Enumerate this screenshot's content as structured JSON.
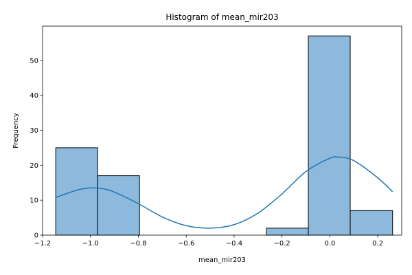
{
  "chart_data": {
    "type": "bar",
    "title": "Histogram of mean_mir203",
    "xlabel": "mean_mir203",
    "ylabel": "Frequency",
    "xlim": [
      -1.2,
      0.3
    ],
    "ylim": [
      0,
      59.8
    ],
    "xticks": [
      -1.2,
      -1.0,
      -0.8,
      -0.6,
      -0.4,
      -0.2,
      0.0,
      0.2
    ],
    "xtick_labels": [
      "−1.2",
      "−1.0",
      "−0.8",
      "−0.6",
      "−0.4",
      "−0.2",
      "0.0",
      "0.2"
    ],
    "yticks": [
      0,
      10,
      20,
      30,
      40,
      50
    ],
    "ytick_labels": [
      "0",
      "10",
      "20",
      "30",
      "40",
      "50"
    ],
    "bins": [
      {
        "x0": -1.145,
        "x1": -0.97,
        "count": 25
      },
      {
        "x0": -0.97,
        "x1": -0.795,
        "count": 17
      },
      {
        "x0": -0.795,
        "x1": -0.62,
        "count": 0
      },
      {
        "x0": -0.62,
        "x1": -0.44,
        "count": 0
      },
      {
        "x0": -0.44,
        "x1": -0.265,
        "count": 0
      },
      {
        "x0": -0.265,
        "x1": -0.09,
        "count": 2
      },
      {
        "x0": -0.09,
        "x1": 0.085,
        "count": 57
      },
      {
        "x0": 0.085,
        "x1": 0.262,
        "count": 7
      }
    ],
    "kde": {
      "x": [
        -1.145,
        -1.05,
        -1.0,
        -0.95,
        -0.9,
        -0.8,
        -0.7,
        -0.6,
        -0.5,
        -0.4,
        -0.3,
        -0.2,
        -0.1,
        0.0,
        0.04,
        0.1,
        0.2,
        0.262
      ],
      "y": [
        10.8,
        13.0,
        13.5,
        13.3,
        12.3,
        9.0,
        5.2,
        2.7,
        2.0,
        3.0,
        6.3,
        11.8,
        18.2,
        22.0,
        22.3,
        21.3,
        16.4,
        12.4
      ]
    },
    "colors": {
      "bar_fill": "#8db9dc",
      "bar_edge": "#000000",
      "kde_line": "#1f77b4"
    },
    "grid": false,
    "legend": "none"
  }
}
